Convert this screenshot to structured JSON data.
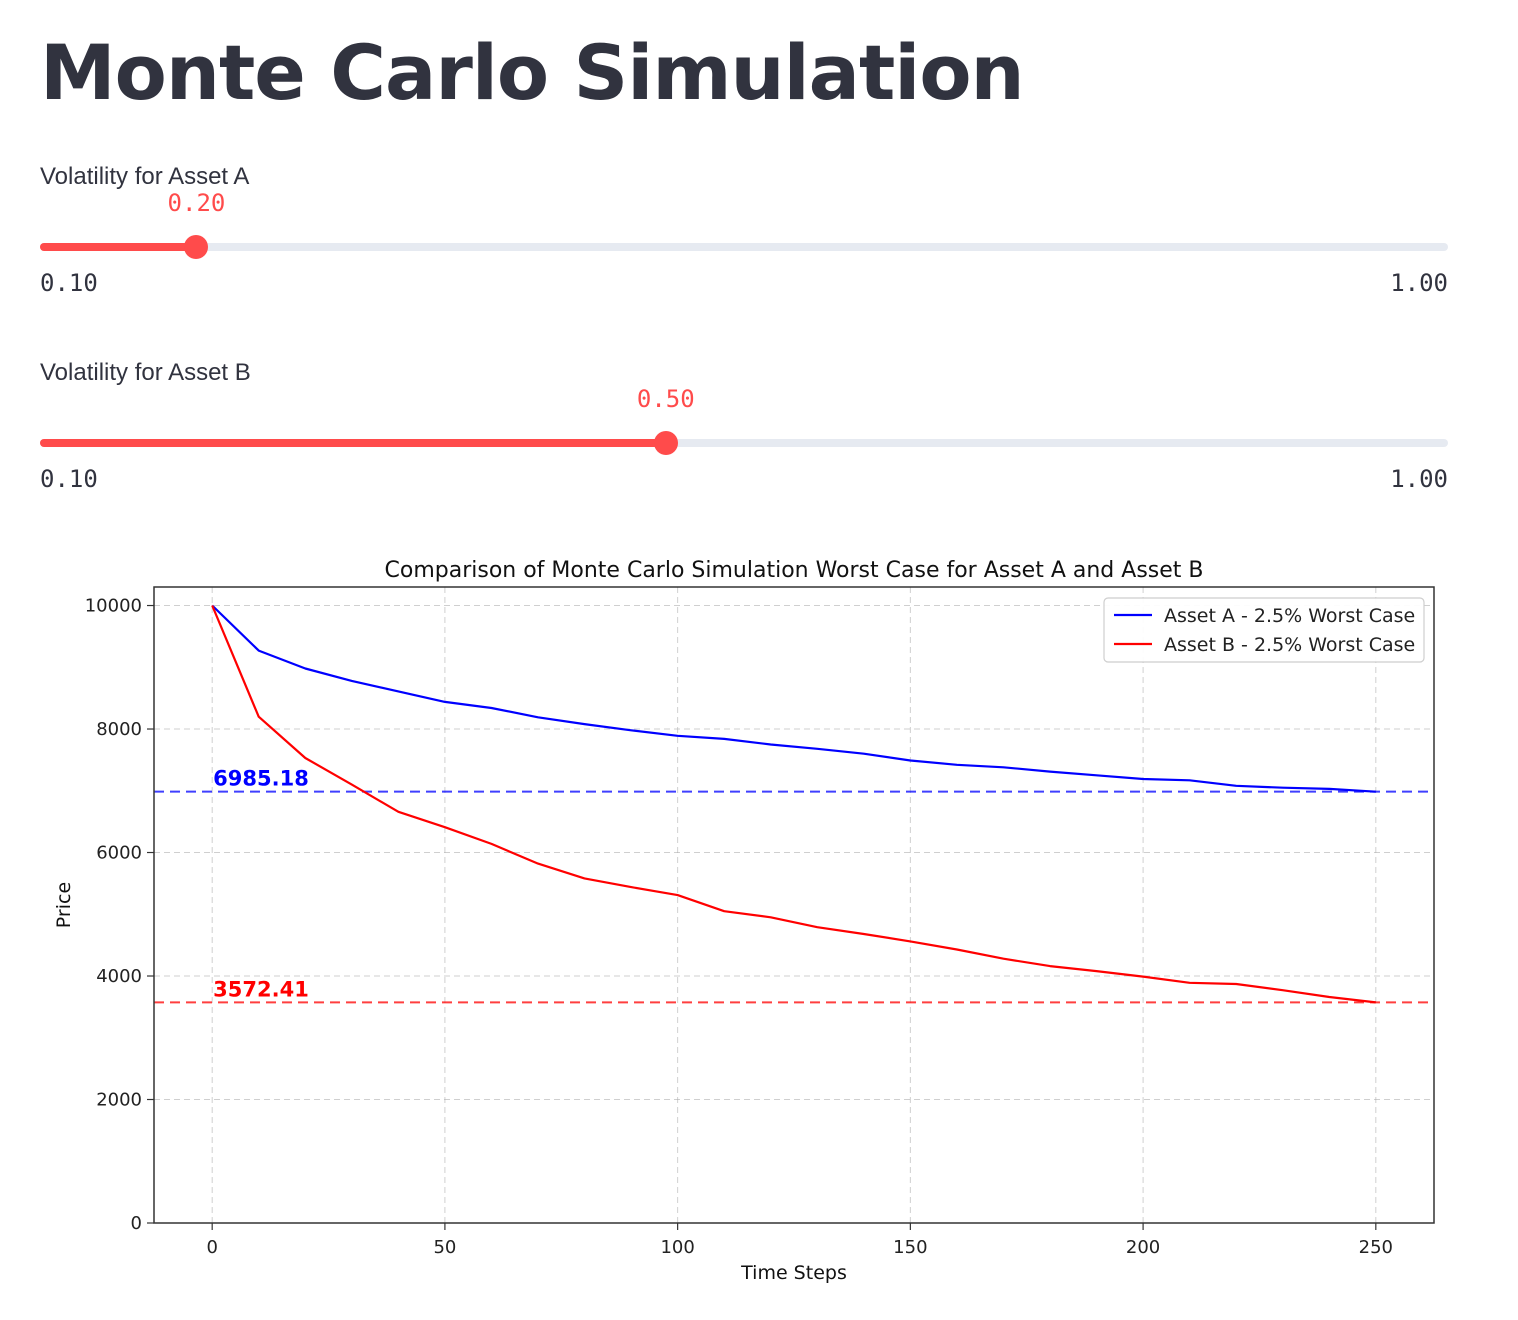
{
  "page": {
    "title": "Monte Carlo Simulation"
  },
  "sliders": [
    {
      "label": "Volatility for Asset A",
      "value": 0.2,
      "value_text": "0.20",
      "min": 0.1,
      "max": 1.0,
      "min_text": "0.10",
      "max_text": "1.00"
    },
    {
      "label": "Volatility for Asset B",
      "value": 0.5,
      "value_text": "0.50",
      "min": 0.1,
      "max": 1.0,
      "min_text": "0.10",
      "max_text": "1.00"
    }
  ],
  "colors": {
    "accent": "#ff4b4b",
    "track": "#e6eaf1",
    "text": "#31333f"
  },
  "chart_data": {
    "type": "line",
    "title": "Comparison of Monte Carlo Simulation Worst Case for Asset A and Asset B",
    "xlabel": "Time Steps",
    "ylabel": "Price",
    "xlim": [
      -12.5,
      262.5
    ],
    "ylim": [
      0,
      10300
    ],
    "xticks": [
      0,
      50,
      100,
      150,
      200,
      250
    ],
    "yticks": [
      0,
      2000,
      4000,
      6000,
      8000,
      10000
    ],
    "grid": true,
    "legend_position": "top-right",
    "series": [
      {
        "name": "Asset A - 2.5% Worst Case",
        "color": "#0000ff",
        "x": [
          0,
          10,
          20,
          30,
          40,
          50,
          60,
          70,
          80,
          90,
          100,
          110,
          120,
          130,
          140,
          150,
          160,
          170,
          180,
          190,
          200,
          210,
          220,
          230,
          240,
          250
        ],
        "y": [
          10000,
          9270,
          8980,
          8780,
          8610,
          8440,
          8340,
          8190,
          8080,
          7980,
          7890,
          7840,
          7750,
          7680,
          7600,
          7490,
          7420,
          7380,
          7310,
          7250,
          7190,
          7170,
          7080,
          7050,
          7030,
          6985.18
        ]
      },
      {
        "name": "Asset B - 2.5% Worst Case",
        "color": "#ff0000",
        "x": [
          0,
          10,
          20,
          30,
          40,
          50,
          60,
          70,
          80,
          90,
          100,
          110,
          120,
          130,
          140,
          150,
          160,
          170,
          180,
          190,
          200,
          210,
          220,
          230,
          240,
          250
        ],
        "y": [
          10000,
          8200,
          7530,
          7100,
          6660,
          6410,
          6140,
          5820,
          5580,
          5440,
          5310,
          5050,
          4950,
          4790,
          4680,
          4560,
          4430,
          4280,
          4160,
          4080,
          3990,
          3890,
          3870,
          3770,
          3660,
          3572.41
        ]
      }
    ],
    "reference_lines": [
      {
        "y": 6985.18,
        "label": "6985.18",
        "color": "#0000ff"
      },
      {
        "y": 3572.41,
        "label": "3572.41",
        "color": "#ff0000"
      }
    ]
  }
}
